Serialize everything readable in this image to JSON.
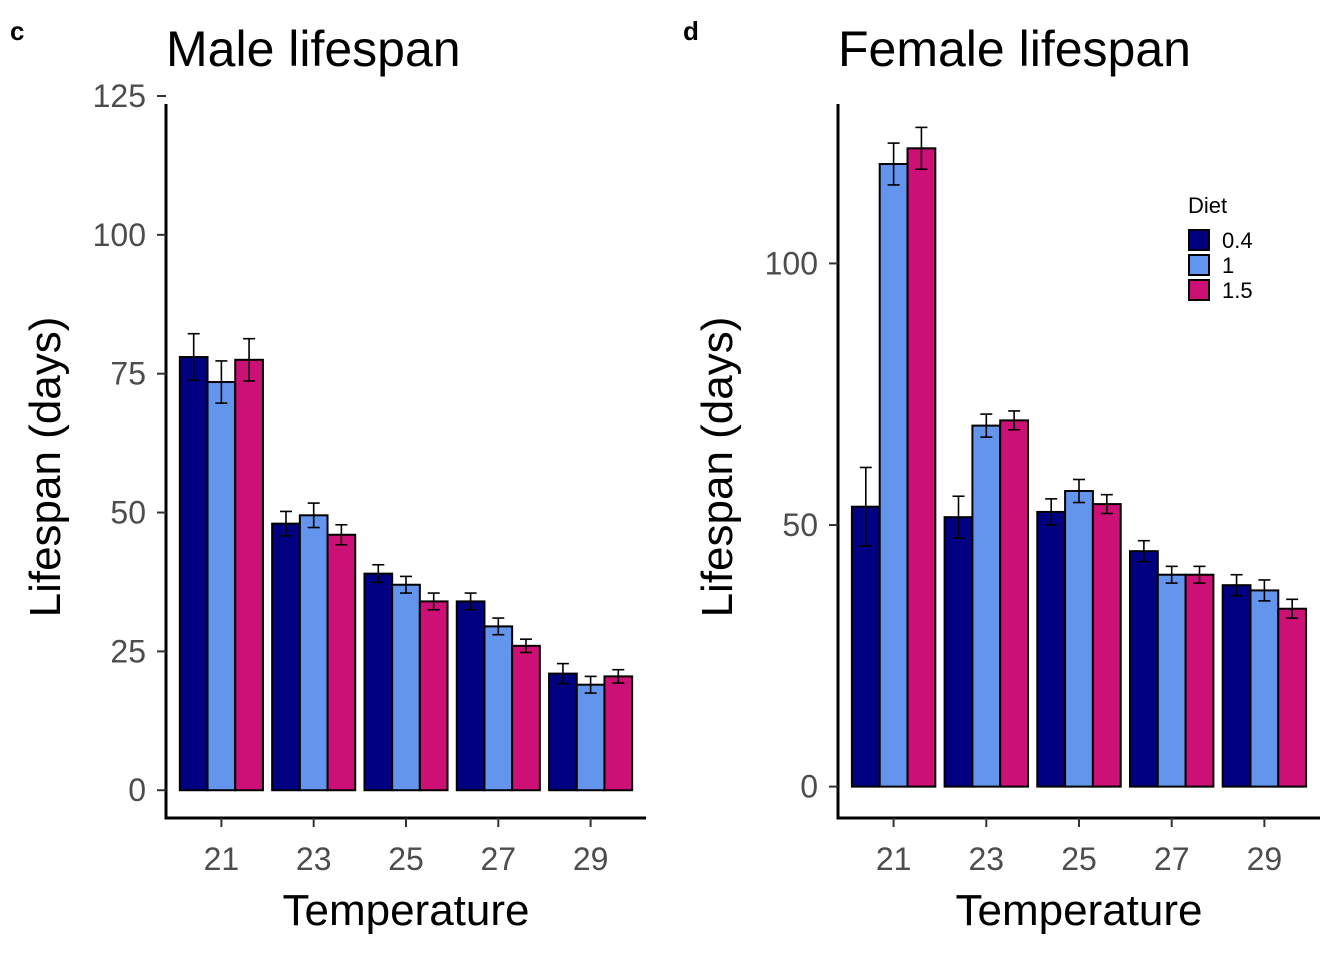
{
  "panels": [
    {
      "label": "c"
    },
    {
      "label": "d"
    }
  ],
  "chart_data": [
    {
      "type": "bar",
      "title": "Male lifespan",
      "xlabel": "Temperature",
      "ylabel": "Lifespan (days)",
      "ylim": [
        -5,
        125
      ],
      "yticks": [
        0,
        25,
        50,
        75,
        100,
        125
      ],
      "categories": [
        "21",
        "23",
        "25",
        "27",
        "29"
      ],
      "error_bars": true,
      "series": [
        {
          "name": "0.4",
          "color": "#000080",
          "values": [
            78,
            48,
            39,
            34,
            21
          ],
          "errors": [
            4.2,
            2.2,
            1.6,
            1.5,
            1.8
          ]
        },
        {
          "name": "1",
          "color": "#6495ED",
          "values": [
            73.5,
            49.5,
            37,
            29.5,
            19
          ],
          "errors": [
            3.8,
            2.2,
            1.5,
            1.5,
            1.5
          ]
        },
        {
          "name": "1.5",
          "color": "#CD1076",
          "values": [
            77.5,
            46,
            34,
            26,
            20.5
          ],
          "errors": [
            3.8,
            1.8,
            1.5,
            1.2,
            1.2
          ]
        }
      ]
    },
    {
      "type": "bar",
      "title": "Female lifespan",
      "xlabel": "Temperature",
      "ylabel": "Lifespan (days)",
      "ylim": [
        -6,
        132
      ],
      "yticks": [
        0,
        50,
        100
      ],
      "categories": [
        "21",
        "23",
        "25",
        "27",
        "29"
      ],
      "error_bars": true,
      "legend": {
        "title": "Diet",
        "position": "top-right"
      },
      "series": [
        {
          "name": "0.4",
          "color": "#000080",
          "values": [
            53.5,
            51.5,
            52.5,
            45,
            38.5
          ],
          "errors": [
            7.5,
            4,
            2.5,
            2,
            2
          ]
        },
        {
          "name": "1",
          "color": "#6495ED",
          "values": [
            119,
            69,
            56.5,
            40.5,
            37.5
          ],
          "errors": [
            4,
            2.2,
            2.2,
            1.6,
            2
          ]
        },
        {
          "name": "1.5",
          "color": "#CD1076",
          "values": [
            122,
            70,
            54,
            40.5,
            34
          ],
          "errors": [
            4,
            1.8,
            1.8,
            1.6,
            1.8
          ]
        }
      ]
    }
  ]
}
